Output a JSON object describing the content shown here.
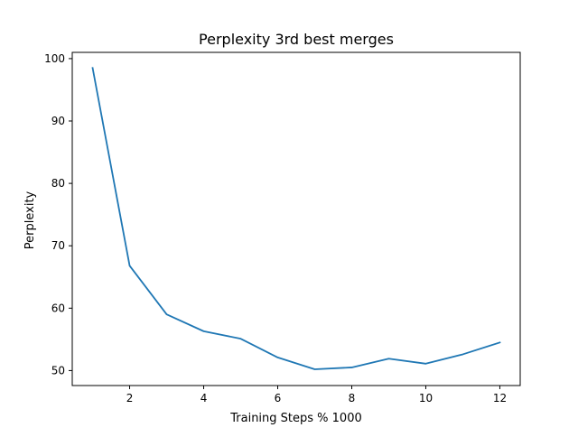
{
  "chart_data": {
    "type": "line",
    "title": "Perplexity 3rd best merges",
    "xlabel": "Training Steps % 1000",
    "ylabel": "Perplexity",
    "xlim": [
      0.45,
      12.55
    ],
    "ylim": [
      47.6,
      101.0
    ],
    "xticks": [
      2,
      4,
      6,
      8,
      10,
      12
    ],
    "yticks": [
      50,
      60,
      70,
      80,
      90,
      100
    ],
    "grid": false,
    "series": [
      {
        "color": "#1f77b4",
        "x": [
          1,
          2,
          3,
          4,
          5,
          6,
          7,
          8,
          9,
          10,
          11,
          12
        ],
        "y": [
          98.5,
          66.8,
          59.0,
          56.3,
          55.1,
          52.1,
          50.2,
          50.5,
          51.9,
          51.1,
          52.6,
          54.5
        ]
      }
    ]
  }
}
